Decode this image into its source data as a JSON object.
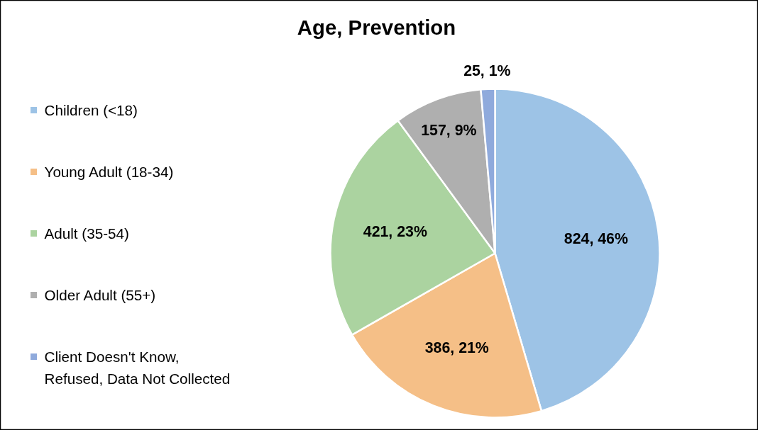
{
  "chart_data": {
    "type": "pie",
    "title": "Age, Prevention",
    "categories": [
      "Children (<18)",
      "Young Adult (18-34)",
      "Adult (35-54)",
      "Older Adult (55+)",
      "Client Doesn't Know,\nRefused, Data Not Collected"
    ],
    "values": [
      824,
      386,
      421,
      157,
      25
    ],
    "colors": [
      "#9dc3e6",
      "#f5bf87",
      "#abd3a0",
      "#afafaf",
      "#8faadc"
    ],
    "value_labels": [
      "824, 46%",
      "386, 21%",
      "421, 23%",
      "157, 9%",
      "25, 1%"
    ],
    "legend": "left"
  }
}
